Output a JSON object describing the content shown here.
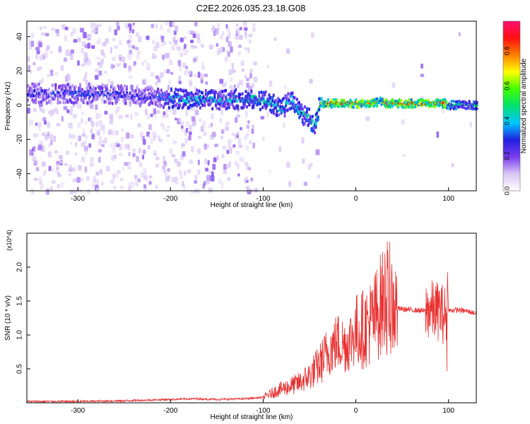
{
  "title": "C2E2.2026.035.23.18.G08",
  "chart_data": [
    {
      "type": "heatmap",
      "xlabel": "Height of straight line (km)",
      "ylabel": "Frequency (Hz)",
      "xlim": [
        -355,
        130
      ],
      "ylim": [
        -50,
        49
      ],
      "xticks": [
        -300,
        -200,
        -100,
        0,
        100
      ],
      "yticks": [
        -40,
        -20,
        0,
        20,
        40
      ],
      "colorbar": {
        "label": "Normalized spectral amplitude",
        "range": [
          0,
          0.97
        ],
        "ticks": [
          "0.0",
          "0.2",
          "0.4",
          "0.6",
          "0.8"
        ],
        "tick_values": [
          0,
          0.2,
          0.4,
          0.6,
          0.8
        ],
        "colormap": [
          "#ffffff",
          "#d9c6f5",
          "#7a3cf0",
          "#2020e0",
          "#00c8ff",
          "#00e070",
          "#40ff00",
          "#ffff00",
          "#ff8000",
          "#ff1010",
          "#ff1070"
        ]
      },
      "ridge": {
        "x": [
          -345,
          -300,
          -250,
          -220,
          -200,
          -150,
          -120,
          -100,
          -80,
          -70,
          -60,
          -50,
          -45,
          -40,
          -35,
          -30,
          -20,
          0,
          20,
          25,
          30,
          50,
          80,
          95,
          100,
          130
        ],
        "y": [
          7,
          7,
          6,
          5,
          4,
          3,
          4,
          3,
          -2,
          4,
          -5,
          -8,
          -12,
          2,
          1,
          1,
          1,
          1,
          1,
          3,
          1,
          1,
          1,
          1,
          0,
          0
        ],
        "amplitude": [
          0.3,
          0.35,
          0.3,
          0.3,
          0.45,
          0.45,
          0.45,
          0.5,
          0.45,
          0.45,
          0.5,
          0.5,
          0.45,
          0.6,
          0.85,
          0.95,
          0.95,
          0.95,
          0.95,
          0.55,
          0.95,
          0.95,
          0.95,
          0.9,
          0.55,
          0.5
        ]
      }
    },
    {
      "type": "line",
      "xlabel": "Height of straight line (km)",
      "ylabel": "SNR (10 * v/v)",
      "y_scale_label": "(x10^4)",
      "xlim": [
        -355,
        130
      ],
      "ylim": [
        0,
        2.5
      ],
      "xticks": [
        -300,
        -200,
        -100,
        0,
        100
      ],
      "yticks": [
        "0.5",
        "1.0",
        "1.5",
        "2.0"
      ],
      "ytick_values": [
        0.5,
        1.0,
        1.5,
        2.0
      ],
      "color": "#e83030",
      "series": [
        {
          "x": [
            -355,
            -300,
            -250,
            -200,
            -175,
            -150,
            -120,
            -100,
            -85,
            -70,
            -60,
            -50,
            -40,
            -30,
            -20,
            -10,
            0,
            10,
            20,
            25,
            30,
            35,
            40,
            50,
            60,
            70,
            75,
            80,
            85,
            90,
            95,
            100,
            110,
            120,
            130
          ],
          "y": [
            0.02,
            0.02,
            0.03,
            0.05,
            0.06,
            0.05,
            0.06,
            0.08,
            0.18,
            0.25,
            0.3,
            0.4,
            0.55,
            0.75,
            0.9,
            0.85,
            1.05,
            1.1,
            1.25,
            1.4,
            1.5,
            1.6,
            1.4,
            1.38,
            1.37,
            1.36,
            1.35,
            1.38,
            1.35,
            1.36,
            1.3,
            1.36,
            1.37,
            1.35,
            1.32
          ]
        }
      ]
    }
  ]
}
